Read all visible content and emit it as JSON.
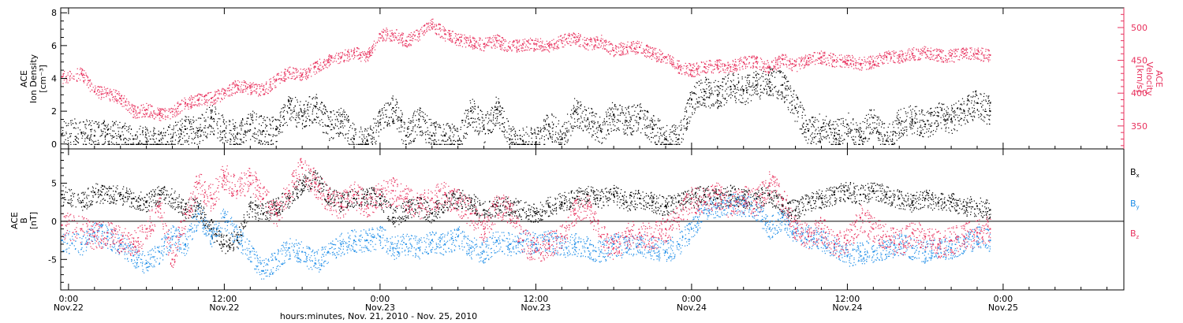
{
  "x_axis": {
    "label": "hours:minutes, Nov. 21, 2010 - Nov. 25, 2010",
    "ticks": [
      {
        "hours": 0,
        "time": "0:00",
        "date": "Nov.22"
      },
      {
        "hours": 12,
        "time": "12:00",
        "date": "Nov.22"
      },
      {
        "hours": 24,
        "time": "0:00",
        "date": "Nov.23"
      },
      {
        "hours": 36,
        "time": "12:00",
        "date": "Nov.23"
      },
      {
        "hours": 48,
        "time": "0:00",
        "date": "Nov.24"
      },
      {
        "hours": 60,
        "time": "12:00",
        "date": "Nov.24"
      },
      {
        "hours": 72,
        "time": "0:00",
        "date": "Nov.25"
      }
    ],
    "range_hours": [
      -0.6,
      81.3
    ]
  },
  "top_panel": {
    "left_label": [
      "ACE",
      "Ion Density",
      "[cm⁻³]"
    ],
    "right_label": [
      "ACE",
      "Velocity",
      "[km/s]"
    ],
    "left_color": "#000000",
    "right_color": "#e8325e",
    "left_ticks": [
      "0",
      "2",
      "4",
      "6",
      "8"
    ],
    "right_ticks": [
      "350",
      "400",
      "450",
      "500"
    ]
  },
  "bottom_panel": {
    "left_label": [
      "ACE",
      "B",
      "[nT]"
    ],
    "ticks": [
      "-5",
      "0",
      "5"
    ],
    "legend": [
      {
        "label": "B",
        "sub": "x",
        "color": "#000000"
      },
      {
        "label": "B",
        "sub": "y",
        "color": "#1f8ee8"
      },
      {
        "label": "B",
        "sub": "z",
        "color": "#e8325e"
      }
    ]
  },
  "chart_data": [
    {
      "type": "scatter",
      "ylabel": "ACE Ion Density [cm^-3]",
      "xlabel": "hours:minutes, Nov. 21, 2010 - Nov. 25, 2010",
      "ylim": [
        -0.3,
        8.3
      ],
      "series": [
        {
          "name": "Ion Density",
          "color": "#000000",
          "x": [
            -0.5,
            1,
            2,
            3,
            4,
            5,
            6,
            7,
            8,
            9,
            10,
            11,
            12,
            13,
            14,
            15,
            16,
            17,
            18,
            19,
            20,
            21,
            22,
            23,
            24,
            25,
            26,
            27,
            28,
            29,
            30,
            31,
            32,
            33,
            34,
            35,
            36,
            37,
            38,
            39,
            40,
            41,
            42,
            43,
            44,
            45,
            46,
            47,
            48,
            49,
            50,
            51,
            52,
            53,
            54,
            55,
            56,
            57,
            58,
            59,
            60,
            61,
            62,
            63,
            64,
            65,
            66,
            67,
            68,
            69,
            70,
            71
          ],
          "values": [
            0.6,
            0.7,
            0.5,
            0.6,
            0.5,
            0.3,
            0.15,
            0.2,
            0.4,
            0.9,
            0.8,
            1.6,
            0.8,
            0.6,
            1.2,
            0.8,
            0.9,
            2.2,
            1.7,
            2.3,
            1.1,
            1.4,
            0.3,
            0.2,
            1.3,
            2.2,
            0.5,
            1.5,
            0.5,
            0.5,
            0.2,
            2.0,
            0.9,
            2.1,
            0.3,
            0.2,
            0.1,
            1.2,
            0.3,
            2.0,
            1.5,
            0.8,
            1.8,
            1.4,
            1.6,
            0.9,
            0.3,
            0.3,
            2.7,
            3.2,
            3.0,
            3.5,
            3.3,
            3.6,
            3.8,
            3.6,
            2.2,
            0.8,
            1.0,
            0.5,
            1.2,
            0.4,
            1.6,
            0.2,
            1.3,
            1.5,
            1.2,
            1.7,
            1.5,
            2.0,
            2.5,
            2.0
          ]
        }
      ]
    },
    {
      "type": "scatter",
      "ylabel": "ACE Velocity [km/s]",
      "ylim": [
        315,
        530
      ],
      "series": [
        {
          "name": "Velocity",
          "color": "#e8325e",
          "x": [
            -0.5,
            1,
            2,
            3,
            4,
            5,
            6,
            7,
            8,
            9,
            10,
            11,
            12,
            13,
            14,
            15,
            16,
            17,
            18,
            19,
            20,
            21,
            22,
            23,
            24,
            25,
            26,
            27,
            28,
            29,
            30,
            31,
            32,
            33,
            34,
            35,
            36,
            37,
            38,
            39,
            40,
            41,
            42,
            43,
            44,
            45,
            46,
            47,
            48,
            49,
            50,
            51,
            52,
            53,
            54,
            55,
            56,
            57,
            58,
            59,
            60,
            61,
            62,
            63,
            64,
            65,
            66,
            67,
            68,
            69,
            70,
            71
          ],
          "values": [
            425,
            430,
            402,
            400,
            392,
            372,
            375,
            368,
            372,
            385,
            390,
            392,
            400,
            412,
            408,
            405,
            420,
            432,
            428,
            440,
            450,
            455,
            462,
            455,
            490,
            490,
            480,
            490,
            505,
            490,
            482,
            478,
            475,
            480,
            470,
            475,
            475,
            472,
            480,
            485,
            475,
            480,
            465,
            470,
            470,
            460,
            455,
            440,
            435,
            440,
            442,
            440,
            447,
            448,
            440,
            452,
            442,
            453,
            455,
            450,
            450,
            445,
            448,
            455,
            455,
            460,
            462,
            458,
            457,
            460,
            460,
            458
          ]
        }
      ]
    },
    {
      "type": "scatter",
      "ylabel": "ACE B [nT]",
      "ylim": [
        -9,
        9.5
      ],
      "series": [
        {
          "name": "Bx",
          "color": "#000000",
          "x": [
            -0.5,
            1,
            2,
            3,
            4,
            5,
            6,
            7,
            8,
            9,
            10,
            11,
            12,
            13,
            14,
            15,
            16,
            17,
            18,
            19,
            20,
            21,
            22,
            23,
            24,
            25,
            26,
            27,
            28,
            29,
            30,
            31,
            32,
            33,
            34,
            35,
            36,
            37,
            38,
            39,
            40,
            41,
            42,
            43,
            44,
            45,
            46,
            47,
            48,
            49,
            50,
            51,
            52,
            53,
            54,
            55,
            56,
            57,
            58,
            59,
            60,
            61,
            62,
            63,
            64,
            65,
            66,
            67,
            68,
            69,
            70,
            71
          ],
          "values": [
            3.5,
            2.5,
            3.8,
            3.5,
            3.5,
            3.0,
            2.5,
            3.5,
            3.0,
            1.5,
            2.0,
            -1.0,
            -3.0,
            -2.5,
            2.0,
            1.0,
            2.0,
            3.0,
            5.0,
            5.5,
            3.5,
            2.5,
            3.0,
            3.5,
            3.0,
            0.5,
            1.5,
            2.0,
            1.0,
            2.5,
            3.0,
            2.5,
            1.5,
            2.0,
            2.0,
            1.5,
            1.0,
            2.0,
            2.5,
            3.0,
            3.5,
            3.0,
            3.5,
            2.5,
            3.0,
            2.5,
            2.0,
            2.5,
            3.0,
            3.5,
            3.0,
            3.5,
            3.0,
            3.0,
            3.5,
            2.0,
            1.5,
            2.5,
            3.0,
            3.5,
            4.0,
            3.5,
            4.0,
            3.5,
            3.0,
            2.5,
            3.0,
            2.5,
            2.5,
            2.0,
            2.0,
            1.5
          ]
        },
        {
          "name": "By",
          "color": "#1f8ee8",
          "x": [
            -0.5,
            1,
            2,
            3,
            4,
            5,
            6,
            7,
            8,
            9,
            10,
            11,
            12,
            13,
            14,
            15,
            16,
            17,
            18,
            19,
            20,
            21,
            22,
            23,
            24,
            25,
            26,
            27,
            28,
            29,
            30,
            31,
            32,
            33,
            34,
            35,
            36,
            37,
            38,
            39,
            40,
            41,
            42,
            43,
            44,
            45,
            46,
            47,
            48,
            49,
            50,
            51,
            52,
            53,
            54,
            55,
            56,
            57,
            58,
            59,
            60,
            61,
            62,
            63,
            64,
            65,
            66,
            67,
            68,
            69,
            70,
            71
          ],
          "values": [
            -2.5,
            -3.0,
            -1.5,
            -2.0,
            -3.0,
            -4.5,
            -5.5,
            -4.0,
            -2.0,
            -3.0,
            1.0,
            -2.0,
            0.5,
            -2.0,
            -4.0,
            -6.5,
            -5.0,
            -3.5,
            -4.0,
            -5.5,
            -4.0,
            -3.0,
            -2.5,
            -2.5,
            -2.0,
            -3.5,
            -3.0,
            -3.5,
            -2.5,
            -3.0,
            -2.0,
            -3.5,
            -4.0,
            -2.5,
            -3.0,
            -2.5,
            -3.0,
            -2.5,
            -3.5,
            -3.0,
            -3.5,
            -4.0,
            -3.0,
            -3.5,
            -3.0,
            -3.5,
            -4.0,
            -3.0,
            -1.0,
            1.5,
            2.0,
            2.5,
            2.0,
            1.5,
            -1.0,
            0.5,
            -1.5,
            -2.0,
            -2.5,
            -3.5,
            -4.5,
            -4.0,
            -4.0,
            -3.5,
            -3.0,
            -3.5,
            -4.0,
            -3.5,
            -3.5,
            -3.0,
            -2.0,
            -2.5
          ]
        },
        {
          "name": "Bz",
          "color": "#e8325e",
          "x": [
            -0.5,
            1,
            2,
            3,
            4,
            5,
            6,
            7,
            8,
            9,
            10,
            11,
            12,
            13,
            14,
            15,
            16,
            17,
            18,
            19,
            20,
            21,
            22,
            23,
            24,
            25,
            26,
            27,
            28,
            29,
            30,
            31,
            32,
            33,
            34,
            35,
            36,
            37,
            38,
            39,
            40,
            41,
            42,
            43,
            44,
            45,
            46,
            47,
            48,
            49,
            50,
            51,
            52,
            53,
            54,
            55,
            56,
            57,
            58,
            59,
            60,
            61,
            62,
            63,
            64,
            65,
            66,
            67,
            68,
            69,
            70,
            71
          ],
          "values": [
            -0.5,
            -1.0,
            -2.0,
            -1.5,
            -2.5,
            -3.0,
            -1.0,
            2.0,
            -5.0,
            1.0,
            5.0,
            3.0,
            6.0,
            4.0,
            6.0,
            3.0,
            1.0,
            4.0,
            7.0,
            5.0,
            3.0,
            2.0,
            3.5,
            2.0,
            3.5,
            4.0,
            3.0,
            2.0,
            3.0,
            3.5,
            2.5,
            1.0,
            -1.0,
            2.0,
            1.5,
            -2.5,
            -4.0,
            -3.0,
            -2.0,
            1.5,
            2.0,
            -2.0,
            -3.5,
            -2.0,
            -1.5,
            -2.0,
            -1.0,
            0.5,
            3.0,
            2.5,
            3.5,
            2.0,
            3.0,
            2.5,
            5.0,
            3.0,
            -1.0,
            -2.0,
            -1.0,
            -3.0,
            -2.5,
            0.5,
            -1.0,
            -2.0,
            -3.0,
            -1.5,
            -2.0,
            -3.0,
            -2.5,
            -2.0,
            -1.5,
            -1.0
          ]
        }
      ]
    }
  ]
}
